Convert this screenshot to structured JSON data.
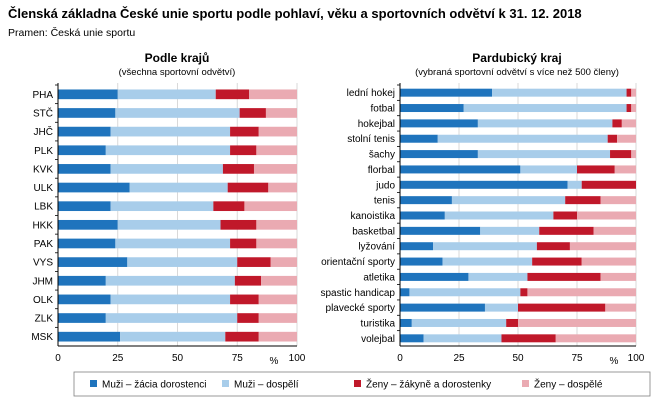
{
  "title": "Členská základna České unie sportu podle pohlaví, věku a sportovních odvětví k 31. 12. 2018",
  "source": "Pramen: Česká unie sportu",
  "colors": {
    "muzi_zaci": "#1f74bd",
    "muzi_dospeli": "#a8cdea",
    "zeny_zakyne": "#c0182a",
    "zeny_dospele": "#eaaab2",
    "grid": "#d9d9d9",
    "axis": "#000000"
  },
  "legend": [
    "Muži – žácia dorostenci",
    "Muži – dospělí",
    "Ženy – žákyně a dorostenky",
    "Ženy – dospělé"
  ],
  "chart_data": [
    {
      "type": "bar",
      "orientation": "horizontal",
      "stacked": true,
      "title": "Podle krajů",
      "subtitle": "(všechna sportovní odvětví)",
      "xlabel": "%",
      "xlim": [
        0,
        100
      ],
      "xticks": [
        0,
        25,
        50,
        75,
        100
      ],
      "grid": true,
      "legend_position": "bottom",
      "categories": [
        "PHA",
        "STČ",
        "JHČ",
        "PLK",
        "KVK",
        "ULK",
        "LBK",
        "HKK",
        "PAK",
        "VYS",
        "JHM",
        "OLK",
        "ZLK",
        "MSK"
      ],
      "series": [
        {
          "name": "Muži – žácia dorostenci",
          "values": [
            25,
            24,
            22,
            20,
            22,
            30,
            22,
            25,
            24,
            29,
            20,
            22,
            20,
            26
          ]
        },
        {
          "name": "Muži – dospělí",
          "values": [
            41,
            52,
            50,
            52,
            47,
            41,
            43,
            43,
            48,
            46,
            54,
            50,
            55,
            44
          ]
        },
        {
          "name": "Ženy – žákyně a dorostenky",
          "values": [
            14,
            11,
            12,
            11,
            13,
            17,
            13,
            15,
            11,
            14,
            11,
            12,
            9,
            14
          ]
        },
        {
          "name": "Ženy – dospělé",
          "values": [
            20,
            13,
            16,
            17,
            18,
            12,
            22,
            17,
            17,
            11,
            15,
            16,
            16,
            16
          ]
        }
      ]
    },
    {
      "type": "bar",
      "orientation": "horizontal",
      "stacked": true,
      "title": "Pardubický kraj",
      "subtitle": "(vybraná sportovní odvětví s více než 500 členy)",
      "xlabel": "%",
      "xlim": [
        0,
        100
      ],
      "xticks": [
        0,
        25,
        50,
        75,
        100
      ],
      "grid": true,
      "legend_position": "bottom",
      "categories": [
        "lední hokej",
        "fotbal",
        "hokejbal",
        "stolní tenis",
        "šachy",
        "florbal",
        "judo",
        "tenis",
        "kanoistika",
        "basketbal",
        "lyžování",
        "orientační sporty",
        "atletika",
        "spastic handicap",
        "plavecké sporty",
        "turistika",
        "volejbal"
      ],
      "series": [
        {
          "name": "Muži – žácia dorostenci",
          "values": [
            39,
            27,
            33,
            16,
            33,
            51,
            71,
            22,
            19,
            34,
            14,
            18,
            29,
            4,
            36,
            5,
            10
          ]
        },
        {
          "name": "Muži – dospělí",
          "values": [
            57,
            69,
            57,
            72,
            56,
            24,
            6,
            48,
            46,
            25,
            44,
            38,
            25,
            47,
            14,
            40,
            33
          ]
        },
        {
          "name": "Ženy – žákyně a dorostenky",
          "values": [
            2,
            2,
            4,
            4,
            9,
            16,
            23,
            15,
            10,
            23,
            14,
            21,
            31,
            3,
            37,
            5,
            23
          ]
        },
        {
          "name": "Ženy – dospělé",
          "values": [
            2,
            2,
            6,
            8,
            2,
            9,
            0,
            15,
            25,
            18,
            28,
            23,
            15,
            46,
            13,
            50,
            34
          ]
        }
      ]
    }
  ]
}
